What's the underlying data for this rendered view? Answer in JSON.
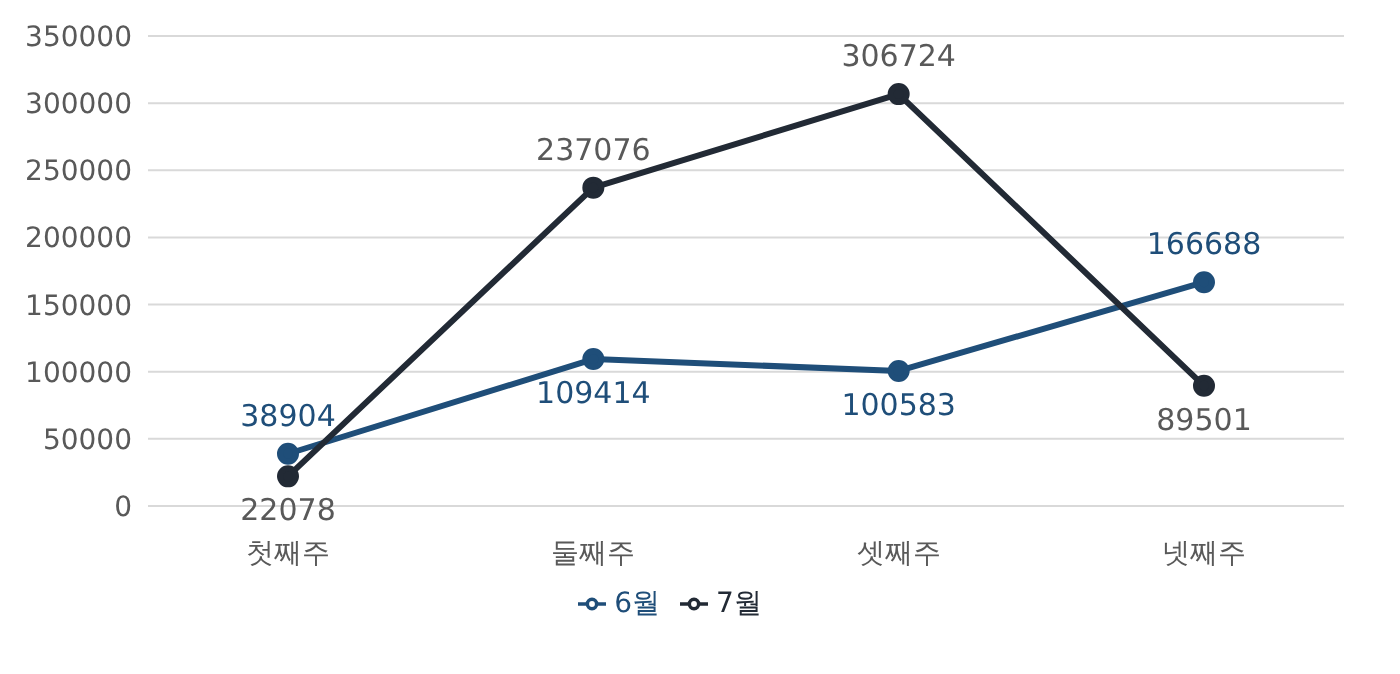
{
  "chart_data": {
    "type": "line",
    "categories": [
      "첫째주",
      "둘째주",
      "셋째주",
      "넷째주"
    ],
    "series": [
      {
        "name": "6월",
        "color": "#1f4e79",
        "values": [
          38904,
          109414,
          100583,
          166688
        ]
      },
      {
        "name": "7월",
        "color": "#222a35",
        "values": [
          22078,
          237076,
          306724,
          89501
        ]
      }
    ],
    "ylim": [
      0,
      350000
    ],
    "yticks": [
      0,
      50000,
      100000,
      150000,
      200000,
      250000,
      300000,
      350000
    ],
    "grid": "y",
    "legend": "bottom",
    "marker": "circle",
    "line_style": "solid",
    "data_labels": true
  }
}
